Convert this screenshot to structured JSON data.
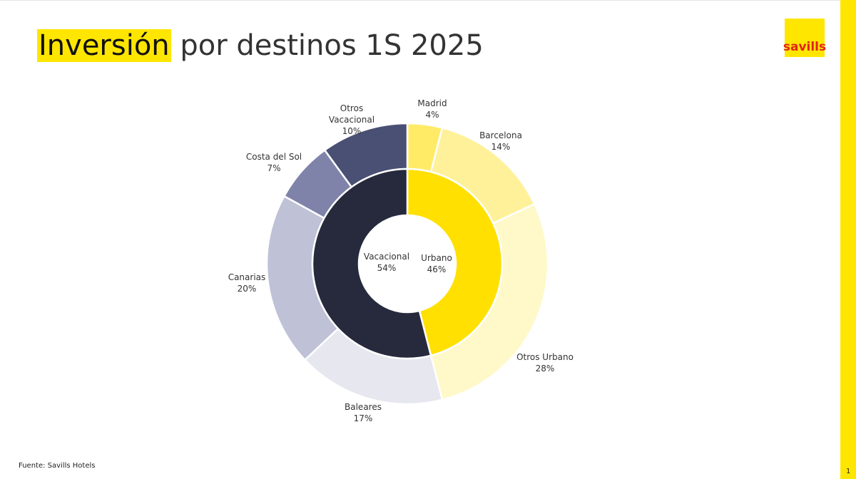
{
  "page": {
    "title_highlight": "Inversión",
    "title_rest": "por destinos 1S 2025",
    "logo_text": "savills",
    "source": "Fuente: Savills Hotels",
    "page_number": "1"
  },
  "colors": {
    "brand_yellow": "#ffe600",
    "brand_red": "#e2231a"
  },
  "chart_data": {
    "type": "pie",
    "variant": "nested-donut",
    "inner": [
      {
        "name": "Urbano",
        "value": 46,
        "label": "46%",
        "color": "#ffe000"
      },
      {
        "name": "Vacacional",
        "value": 54,
        "label": "54%",
        "color": "#272a3d"
      }
    ],
    "outer": [
      {
        "name": "Madrid",
        "value": 4,
        "label": "4%",
        "color": "#ffeb66"
      },
      {
        "name": "Barcelona",
        "value": 14,
        "label": "14%",
        "color": "#fff19a"
      },
      {
        "name": "Otros Urbano",
        "value": 28,
        "label": "28%",
        "color": "#fff8c9"
      },
      {
        "name": "Baleares",
        "value": 17,
        "label": "17%",
        "color": "#e6e7ef"
      },
      {
        "name": "Canarias",
        "value": 20,
        "label": "20%",
        "color": "#bfc1d6"
      },
      {
        "name": "Costa del Sol",
        "value": 7,
        "label": "7%",
        "color": "#8083a9"
      },
      {
        "name": "Otros Vacacional",
        "value": 10,
        "label": "10%",
        "color": "#4a4f74"
      }
    ]
  }
}
